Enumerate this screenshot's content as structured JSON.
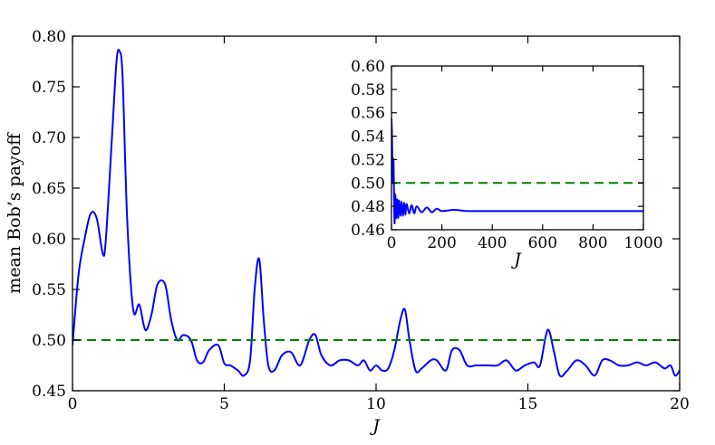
{
  "chart_data": [
    {
      "type": "line",
      "title": "",
      "xlabel": "J",
      "ylabel": "mean Bob’s payoff",
      "xlim": [
        0,
        20
      ],
      "ylim": [
        0.45,
        0.8
      ],
      "xticks": [
        "0",
        "5",
        "10",
        "15",
        "20"
      ],
      "yticks": [
        "0.45",
        "0.50",
        "0.55",
        "0.60",
        "0.65",
        "0.70",
        "0.75",
        "0.80"
      ],
      "grid": false,
      "series": [
        {
          "style": "solid",
          "color": "#0000ff",
          "x": [
            0.0,
            0.2,
            0.4,
            0.6,
            0.8,
            1.0,
            1.1,
            1.3,
            1.45,
            1.55,
            1.65,
            1.8,
            2.0,
            2.2,
            2.4,
            2.6,
            2.8,
            3.05,
            3.25,
            3.45,
            3.65,
            3.9,
            4.1,
            4.3,
            4.5,
            4.8,
            5.0,
            5.2,
            5.45,
            5.65,
            5.85,
            6.0,
            6.15,
            6.3,
            6.45,
            6.65,
            6.9,
            7.2,
            7.5,
            7.8,
            8.0,
            8.2,
            8.5,
            8.8,
            9.1,
            9.4,
            9.6,
            9.8,
            10.0,
            10.2,
            10.4,
            10.6,
            10.8,
            10.95,
            11.1,
            11.3,
            11.5,
            11.8,
            12.0,
            12.3,
            12.5,
            12.75,
            13.0,
            13.3,
            13.7,
            14.0,
            14.3,
            14.6,
            14.9,
            15.2,
            15.4,
            15.65,
            15.85,
            16.05,
            16.3,
            16.6,
            16.9,
            17.2,
            17.45,
            17.7,
            18.0,
            18.3,
            18.6,
            18.9,
            19.2,
            19.5,
            19.7,
            19.85,
            20.0
          ],
          "values": [
            0.495,
            0.565,
            0.6,
            0.625,
            0.62,
            0.585,
            0.6,
            0.7,
            0.775,
            0.785,
            0.76,
            0.62,
            0.53,
            0.535,
            0.51,
            0.525,
            0.555,
            0.555,
            0.52,
            0.5,
            0.505,
            0.5,
            0.48,
            0.478,
            0.49,
            0.495,
            0.477,
            0.475,
            0.47,
            0.465,
            0.48,
            0.55,
            0.58,
            0.52,
            0.475,
            0.47,
            0.485,
            0.488,
            0.475,
            0.5,
            0.505,
            0.485,
            0.475,
            0.48,
            0.48,
            0.475,
            0.48,
            0.47,
            0.475,
            0.47,
            0.472,
            0.49,
            0.52,
            0.53,
            0.5,
            0.47,
            0.472,
            0.48,
            0.48,
            0.47,
            0.49,
            0.49,
            0.475,
            0.475,
            0.475,
            0.475,
            0.48,
            0.47,
            0.475,
            0.478,
            0.475,
            0.51,
            0.49,
            0.465,
            0.47,
            0.48,
            0.475,
            0.465,
            0.48,
            0.48,
            0.475,
            0.475,
            0.478,
            0.475,
            0.478,
            0.472,
            0.475,
            0.465,
            0.47
          ]
        },
        {
          "style": "dashed",
          "color": "#008000",
          "x": [
            0,
            20
          ],
          "values": [
            0.5,
            0.5
          ]
        }
      ]
    },
    {
      "type": "line",
      "title": "",
      "xlabel": "J",
      "ylabel": "",
      "xlim": [
        0,
        1000
      ],
      "ylim": [
        0.46,
        0.6
      ],
      "xticks": [
        "0",
        "200",
        "400",
        "600",
        "800",
        "1000"
      ],
      "yticks": [
        "0.46",
        "0.48",
        "0.50",
        "0.52",
        "0.54",
        "0.56",
        "0.58",
        "0.60"
      ],
      "grid": false,
      "series": [
        {
          "style": "solid",
          "color": "#0000ff",
          "x": [
            0,
            2,
            5,
            8,
            12,
            15,
            18,
            22,
            26,
            30,
            35,
            40,
            45,
            50,
            55,
            60,
            70,
            80,
            90,
            100,
            120,
            140,
            160,
            180,
            200,
            250,
            300,
            400,
            500,
            600,
            700,
            800,
            900,
            1000
          ],
          "values": [
            0.555,
            0.54,
            0.5,
            0.52,
            0.466,
            0.49,
            0.47,
            0.486,
            0.47,
            0.485,
            0.472,
            0.484,
            0.472,
            0.483,
            0.473,
            0.482,
            0.474,
            0.481,
            0.474,
            0.48,
            0.475,
            0.479,
            0.475,
            0.478,
            0.476,
            0.477,
            0.476,
            0.476,
            0.476,
            0.476,
            0.476,
            0.476,
            0.476,
            0.476
          ]
        },
        {
          "style": "dashed",
          "color": "#008000",
          "x": [
            0,
            1000
          ],
          "values": [
            0.5,
            0.5
          ]
        }
      ]
    }
  ]
}
